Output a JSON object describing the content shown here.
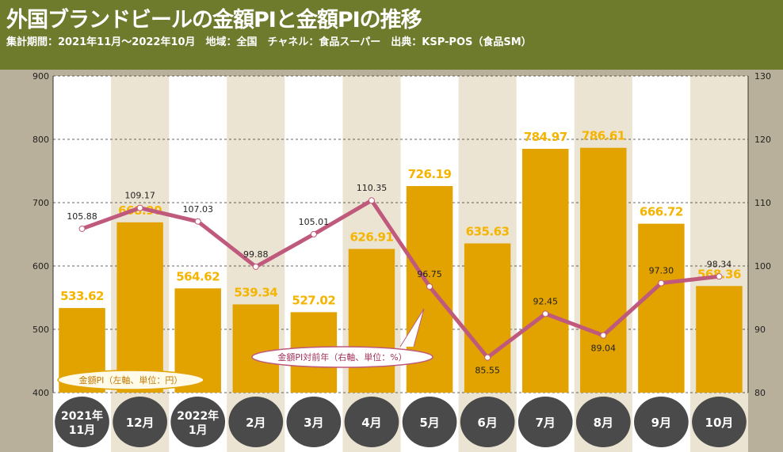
{
  "title": "外国ブランドビールの金額PIと金額PIの推移",
  "subtitle": "集計期間：2021年11月～2022年10月　地域：全国　チャネル：食品スーパー　出典：KSP-POS（食品SM）",
  "colors": {
    "header": "#6e7a2c",
    "bar": "#e2a200",
    "line": "#c05a7c",
    "label_bar": "#f5b400",
    "stripe_light": "#ece4d2",
    "stripe_plain": "#ffffff",
    "circle": "#4a4a4a",
    "side": "#b8b09a"
  },
  "chart_data": {
    "type": "bar+line",
    "categories": [
      [
        "2021年",
        "11月"
      ],
      [
        "12月"
      ],
      [
        "2022年",
        "1月"
      ],
      [
        "2月"
      ],
      [
        "3月"
      ],
      [
        "4月"
      ],
      [
        "5月"
      ],
      [
        "6月"
      ],
      [
        "7月"
      ],
      [
        "8月"
      ],
      [
        "9月"
      ],
      [
        "10月"
      ]
    ],
    "series": [
      {
        "name": "金額PI（左軸、単位：円）",
        "type": "bar",
        "axis": "left",
        "values": [
          533.62,
          668.9,
          564.62,
          539.34,
          527.02,
          626.91,
          726.19,
          635.63,
          784.97,
          786.61,
          666.72,
          568.36
        ],
        "labels": [
          "533.62",
          "668.90",
          "564.62",
          "539.34",
          "527.02",
          "626.91",
          "726.19",
          "635.63",
          "784.97",
          "786.61",
          "666.72",
          "568.36"
        ]
      },
      {
        "name": "金額PI対前年（右軸、単位：%）",
        "type": "line",
        "axis": "right",
        "values": [
          105.88,
          109.17,
          107.03,
          99.88,
          105.01,
          110.35,
          96.75,
          85.55,
          92.45,
          89.04,
          97.3,
          98.34
        ],
        "labels": [
          "105.88",
          "109.17",
          "107.03",
          "99.88",
          "105.01",
          "110.35",
          "96.75",
          "85.55",
          "92.45",
          "89.04",
          "97.30",
          "98.34"
        ]
      }
    ],
    "y_left": {
      "min": 400,
      "max": 900,
      "ticks": [
        "400",
        "500",
        "600",
        "700",
        "800",
        "900"
      ]
    },
    "y_right": {
      "min": 80,
      "max": 130,
      "ticks": [
        "80",
        "90",
        "100",
        "110",
        "120",
        "130"
      ]
    }
  }
}
